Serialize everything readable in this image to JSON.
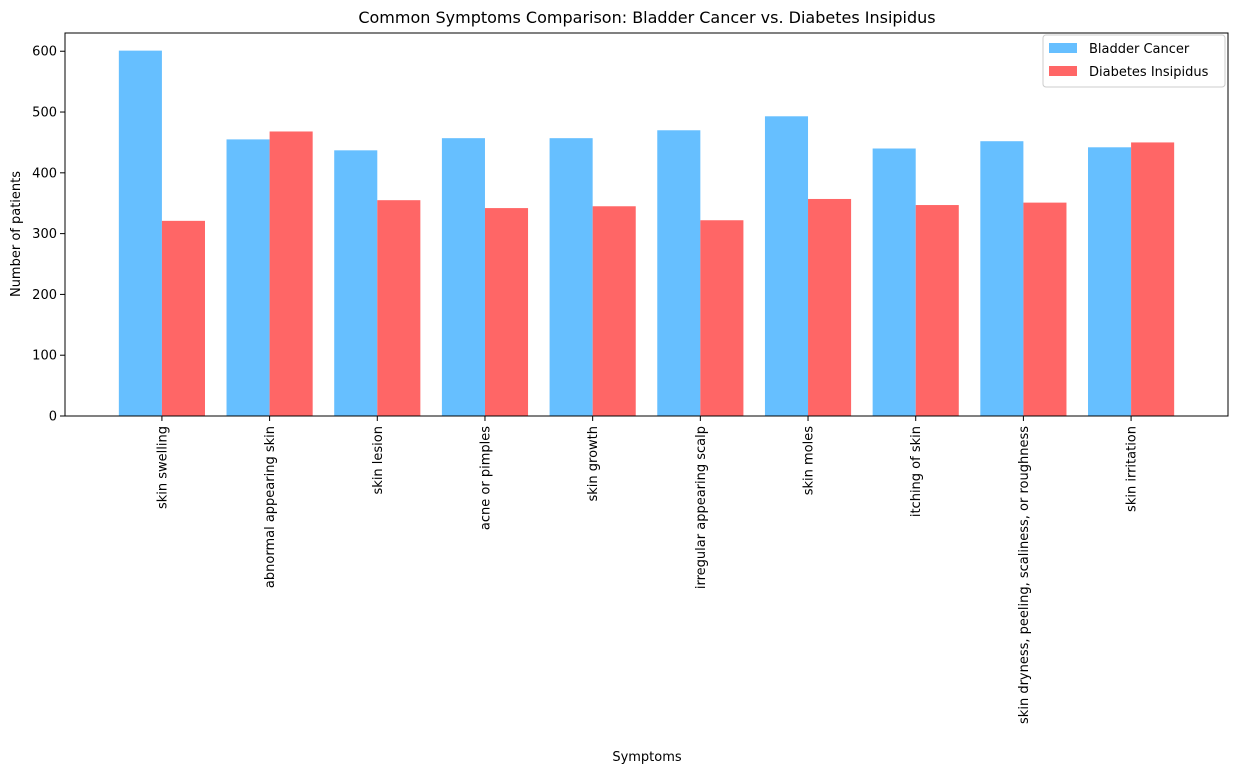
{
  "chart_data": {
    "type": "bar",
    "title": "Common Symptoms Comparison: Bladder Cancer vs. Diabetes Insipidus",
    "xlabel": "Symptoms",
    "ylabel": "Number of patients",
    "ylim": [
      0,
      630
    ],
    "yticks": [
      0,
      100,
      200,
      300,
      400,
      500,
      600
    ],
    "grid": false,
    "legend_position": "top-right",
    "categories": [
      "skin swelling",
      "abnormal appearing skin",
      "skin lesion",
      "acne or pimples",
      "skin growth",
      "irregular appearing scalp",
      "skin moles",
      "itching of skin",
      "skin dryness, peeling, scaliness, or roughness",
      "skin irritation"
    ],
    "series": [
      {
        "name": "Bladder Cancer",
        "color": "#66bfff",
        "values": [
          601,
          455,
          437,
          457,
          457,
          470,
          493,
          440,
          452,
          442
        ]
      },
      {
        "name": "Diabetes Insipidus",
        "color": "#ff6666",
        "values": [
          321,
          468,
          355,
          342,
          345,
          322,
          357,
          347,
          351,
          450
        ]
      }
    ]
  }
}
